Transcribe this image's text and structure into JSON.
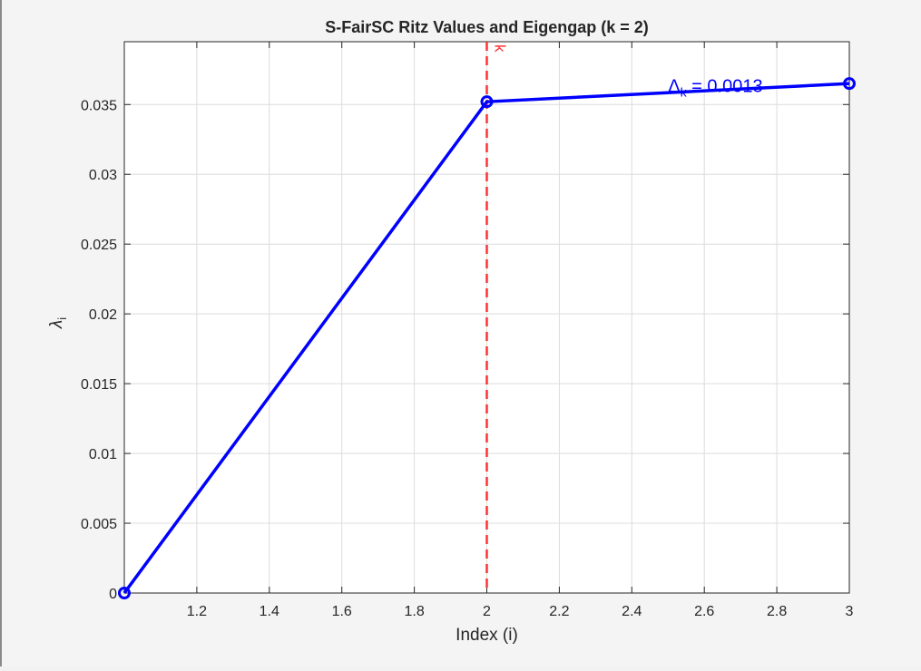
{
  "chart_data": {
    "type": "line",
    "title": "S-FairSC Ritz Values and Eigengap (k = 2)",
    "xlabel": "Index (i)",
    "ylabel_symbol": "λ",
    "ylabel_subscript": "i",
    "xlim": [
      1,
      3
    ],
    "ylim": [
      0,
      0.0395
    ],
    "xticks": [
      1.2,
      1.4,
      1.6,
      1.8,
      2,
      2.2,
      2.4,
      2.6,
      2.8,
      3
    ],
    "xtick_labels": [
      "1.2",
      "1.4",
      "1.6",
      "1.8",
      "2",
      "2.2",
      "2.4",
      "2.6",
      "2.8",
      "3"
    ],
    "yticks": [
      0,
      0.005,
      0.01,
      0.015,
      0.02,
      0.025,
      0.03,
      0.035
    ],
    "ytick_labels": [
      "0",
      "0.005",
      "0.01",
      "0.015",
      "0.02",
      "0.025",
      "0.03",
      "0.035"
    ],
    "grid": true,
    "series": [
      {
        "x": [
          1,
          2,
          3
        ],
        "y": [
          0,
          0.0352,
          0.0365
        ],
        "color": "#0000ff",
        "marker": "circle"
      }
    ],
    "vline": {
      "x": 2,
      "label": "k",
      "color": "#ff3333",
      "style": "dashed"
    },
    "annotation": {
      "delta_symbol": "Δ",
      "delta_subscript": "k",
      "text": " = 0.0013",
      "x": 2.5,
      "y": 0.0359,
      "color": "#0000ff"
    }
  }
}
